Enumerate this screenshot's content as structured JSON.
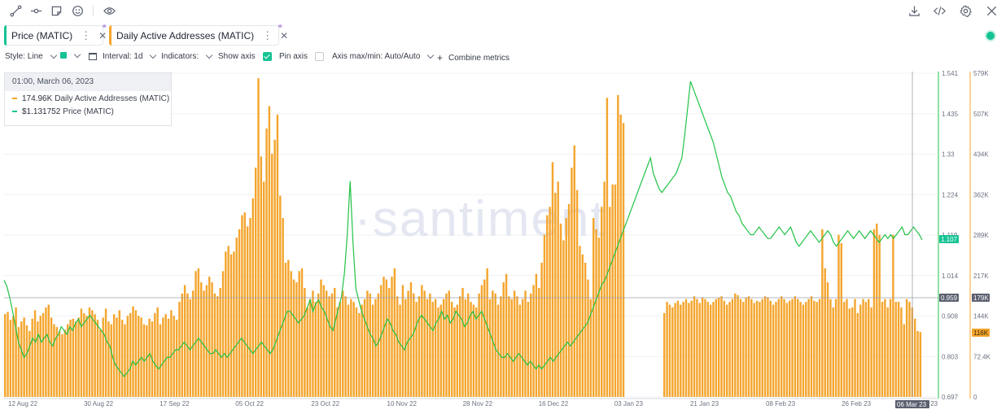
{
  "toolbar": {
    "left_icons": [
      "line-draw-icon",
      "horizontal-line-icon",
      "note-icon",
      "emoji-icon",
      "eye-icon"
    ],
    "right_icons": [
      "download-icon",
      "code-icon",
      "settings-icon",
      "close-icon"
    ]
  },
  "tabs": [
    {
      "label": "Price (MATIC)",
      "color": "#14c393"
    },
    {
      "label": "Daily Active Addresses (MATIC)",
      "color": "#f4a52d"
    }
  ],
  "options": {
    "style_label": "Style: Line",
    "interval_label": "Interval: 1d",
    "indicators_label": "Indicators:",
    "show_axis_label": "Show axis",
    "pin_axis_label": "Pin axis",
    "axis_maxmin_label": "Axis max/min: Auto/Auto",
    "combine_label": "Combine metrics",
    "combine_plus": "+"
  },
  "tooltip": {
    "date": "01:00, March 06, 2023",
    "rows": [
      {
        "value": "174.96K",
        "name": "Daily Active Addresses (MATIC)",
        "color": "#f4a52d"
      },
      {
        "value": "$1.131752",
        "name": "Price (MATIC)",
        "color": "#14c393"
      }
    ]
  },
  "watermark": "·santiment",
  "colors": {
    "price": "#14c393",
    "daa": "#f4a52d",
    "current_price_badge": "#14c393",
    "crosshair_badge": "#5b6070"
  },
  "chart_data": {
    "type": "bar+line",
    "x_ticks": [
      "12 Aug 22",
      "30 Aug 22",
      "17 Sep 22",
      "05 Oct 22",
      "23 Oct 22",
      "10 Nov 22",
      "28 Nov 22",
      "16 Dec 22",
      "03 Jan 23",
      "21 Jan 23",
      "08 Feb 23",
      "26 Feb 23",
      "Mar 23"
    ],
    "x_hover_label": "06 Mar 23",
    "price_axis": {
      "ticks": [
        "1.541",
        "1.435",
        "1.33",
        "1.224",
        "1.119",
        "1.014",
        "0.908",
        "0.803",
        "0.697"
      ],
      "min": 0.697,
      "max": 1.541
    },
    "daa_axis": {
      "ticks": [
        "579K",
        "507K",
        "434K",
        "362K",
        "289K",
        "217K",
        "144K",
        "72.4K",
        "0"
      ],
      "min": 0,
      "max": 579000
    },
    "badges": {
      "price_current": "1.107",
      "price_crosshair": "0.959",
      "daa_crosshair": "179K",
      "daa_current": "116K"
    },
    "series": [
      {
        "name": "Daily Active Addresses (MATIC)",
        "kind": "bar",
        "values": [
          148,
          152,
          138,
          144,
          160,
          125,
          135,
          142,
          128,
          118,
          140,
          155,
          135,
          145,
          150,
          160,
          165,
          142,
          130,
          125,
          118,
          112,
          120,
          130,
          138,
          140,
          135,
          142,
          158,
          150,
          145,
          160,
          155,
          148,
          138,
          120,
          142,
          158,
          135,
          130,
          148,
          142,
          155,
          138,
          130,
          145,
          150,
          162,
          155,
          145,
          142,
          130,
          128,
          140,
          135,
          150,
          160,
          130,
          142,
          148,
          140,
          155,
          145,
          138,
          170,
          185,
          200,
          185,
          175,
          190,
          225,
          230,
          205,
          190,
          200,
          215,
          205,
          185,
          180,
          195,
          225,
          260,
          270,
          255,
          260,
          285,
          300,
          325,
          330,
          305,
          320,
          355,
          410,
          570,
          430,
          385,
          480,
          520,
          435,
          460,
          505,
          360,
          320,
          240,
          245,
          225,
          210,
          205,
          225,
          230,
          195,
          160,
          175,
          190,
          170,
          185,
          210,
          200,
          190,
          180,
          185,
          195,
          160,
          170,
          190,
          180,
          165,
          175,
          170,
          160,
          150,
          165,
          175,
          190,
          185,
          165,
          175,
          185,
          200,
          215,
          210,
          195,
          215,
          230,
          180,
          165,
          200,
          175,
          190,
          205,
          185,
          170,
          180,
          200,
          190,
          175,
          185,
          170,
          175,
          160,
          165,
          175,
          185,
          190,
          170,
          160,
          165,
          180,
          195,
          175,
          185,
          170,
          165,
          160,
          185,
          200,
          210,
          230,
          175,
          190,
          185,
          165,
          180,
          205,
          220,
          180,
          175,
          190,
          180,
          165,
          175,
          190,
          170,
          185,
          200,
          220,
          195,
          240,
          290,
          325,
          340,
          420,
          365,
          385,
          310,
          280,
          320,
          345,
          410,
          450,
          370,
          270,
          255,
          240,
          210,
          175,
          320,
          300,
          285,
          340,
          385,
          535,
          340,
          380,
          380,
          540,
          505,
          490,
          0,
          0,
          0,
          0,
          0,
          0,
          0,
          0,
          0,
          0,
          0,
          0,
          0,
          0,
          150,
          170,
          165,
          160,
          168,
          172,
          165,
          170,
          175,
          168,
          172,
          180,
          175,
          168,
          178,
          175,
          170,
          165,
          170,
          175,
          178,
          180,
          172,
          165,
          170,
          175,
          185,
          182,
          175,
          170,
          178,
          180,
          175,
          168,
          172,
          170,
          175,
          180,
          178,
          172,
          165,
          170,
          175,
          180,
          175,
          168,
          172,
          175,
          180,
          175,
          170,
          165,
          170,
          175,
          180,
          172,
          170,
          175,
          300,
          230,
          205,
          175,
          160,
          175,
          290,
          275,
          170,
          175,
          158,
          160,
          175,
          150,
          165,
          175,
          170,
          175,
          160,
          300,
          310,
          290,
          170,
          175,
          160,
          175,
          290,
          170,
          170,
          160,
          130,
          175,
          170,
          160,
          140,
          118,
          116
        ]
      },
      {
        "name": "Price (MATIC)",
        "kind": "line",
        "values": [
          1.001,
          0.985,
          0.955,
          0.92,
          0.88,
          0.84,
          0.82,
          0.8,
          0.81,
          0.83,
          0.85,
          0.84,
          0.86,
          0.84,
          0.85,
          0.86,
          0.84,
          0.83,
          0.85,
          0.86,
          0.88,
          0.87,
          0.86,
          0.88,
          0.87,
          0.89,
          0.9,
          0.88,
          0.89,
          0.9,
          0.91,
          0.9,
          0.89,
          0.88,
          0.87,
          0.86,
          0.84,
          0.83,
          0.8,
          0.78,
          0.77,
          0.76,
          0.75,
          0.76,
          0.77,
          0.79,
          0.78,
          0.79,
          0.8,
          0.79,
          0.8,
          0.81,
          0.79,
          0.78,
          0.77,
          0.78,
          0.79,
          0.8,
          0.8,
          0.81,
          0.82,
          0.82,
          0.83,
          0.84,
          0.83,
          0.82,
          0.83,
          0.84,
          0.85,
          0.84,
          0.83,
          0.82,
          0.81,
          0.81,
          0.82,
          0.81,
          0.8,
          0.81,
          0.8,
          0.81,
          0.82,
          0.83,
          0.84,
          0.85,
          0.84,
          0.83,
          0.82,
          0.81,
          0.82,
          0.83,
          0.84,
          0.83,
          0.82,
          0.81,
          0.82,
          0.84,
          0.86,
          0.88,
          0.9,
          0.92,
          0.92,
          0.91,
          0.9,
          0.89,
          0.9,
          0.91,
          0.93,
          0.95,
          0.92,
          0.94,
          0.95,
          0.93,
          0.92,
          0.9,
          0.88,
          0.87,
          0.9,
          0.93,
          0.96,
          1.02,
          1.12,
          1.26,
          1.1,
          0.98,
          0.95,
          0.92,
          0.9,
          0.88,
          0.86,
          0.85,
          0.83,
          0.84,
          0.86,
          0.88,
          0.9,
          0.89,
          0.87,
          0.86,
          0.84,
          0.83,
          0.82,
          0.84,
          0.85,
          0.86,
          0.88,
          0.9,
          0.91,
          0.9,
          0.89,
          0.88,
          0.87,
          0.89,
          0.9,
          0.92,
          0.9,
          0.91,
          0.89,
          0.9,
          0.92,
          0.91,
          0.9,
          0.88,
          0.89,
          0.91,
          0.92,
          0.9,
          0.91,
          0.92,
          0.9,
          0.88,
          0.86,
          0.84,
          0.82,
          0.81,
          0.8,
          0.8,
          0.81,
          0.8,
          0.79,
          0.8,
          0.81,
          0.8,
          0.79,
          0.78,
          0.79,
          0.78,
          0.77,
          0.78,
          0.77,
          0.78,
          0.79,
          0.8,
          0.79,
          0.8,
          0.81,
          0.82,
          0.83,
          0.84,
          0.83,
          0.84,
          0.85,
          0.86,
          0.87,
          0.88,
          0.89,
          0.91,
          0.93,
          0.95,
          0.97,
          0.99,
          1.0,
          1.02,
          1.04,
          1.06,
          1.08,
          1.1,
          1.12,
          1.14,
          1.16,
          1.18,
          1.2,
          1.22,
          1.24,
          1.26,
          1.28,
          1.3,
          1.32,
          1.28,
          1.26,
          1.24,
          1.23,
          1.24,
          1.25,
          1.26,
          1.27,
          1.28,
          1.3,
          1.32,
          1.38,
          1.45,
          1.52,
          1.5,
          1.48,
          1.46,
          1.44,
          1.42,
          1.4,
          1.38,
          1.36,
          1.33,
          1.3,
          1.27,
          1.25,
          1.23,
          1.22,
          1.2,
          1.18,
          1.17,
          1.15,
          1.14,
          1.13,
          1.12,
          1.12,
          1.13,
          1.14,
          1.13,
          1.12,
          1.11,
          1.11,
          1.12,
          1.13,
          1.14,
          1.13,
          1.12,
          1.13,
          1.14,
          1.12,
          1.1,
          1.09,
          1.1,
          1.11,
          1.12,
          1.13,
          1.12,
          1.11,
          1.1,
          1.11,
          1.12,
          1.13,
          1.12,
          1.1,
          1.09,
          1.1,
          1.11,
          1.12,
          1.13,
          1.12,
          1.11,
          1.12,
          1.13,
          1.12,
          1.11,
          1.12,
          1.13,
          1.12,
          1.11,
          1.1,
          1.11,
          1.12,
          1.11,
          1.12,
          1.11,
          1.12,
          1.13,
          1.14,
          1.12,
          1.12,
          1.13,
          1.14,
          1.13,
          1.12,
          1.107
        ]
      }
    ]
  }
}
